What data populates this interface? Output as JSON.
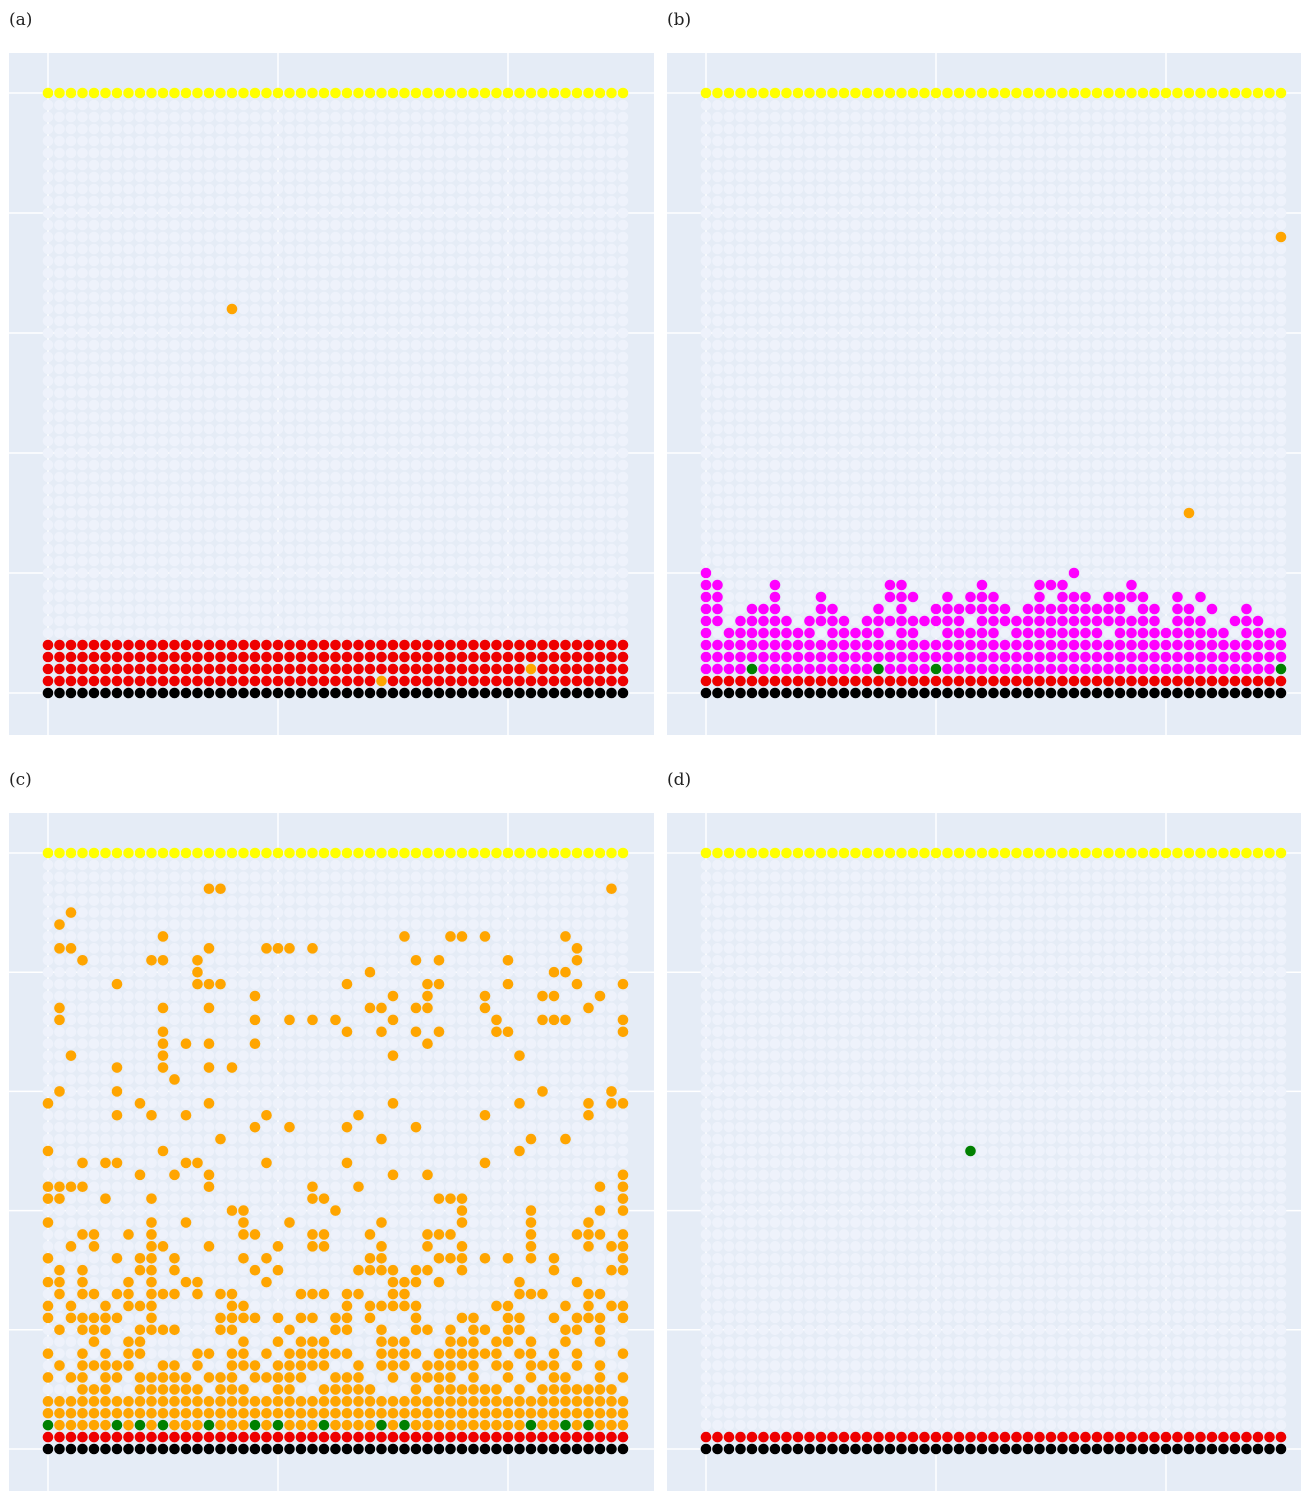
{
  "colors": {
    "background": "#e5ecf6",
    "gridline": "#ffffff",
    "empty": "#eef2fb",
    "yellow": "#ffff00",
    "red": "#ee0000",
    "black": "#000000",
    "orange": "#ffa500",
    "magenta": "#ff00ff",
    "green": "#008000"
  },
  "chart_data": [
    {
      "type": "scatter",
      "label": "(a)",
      "grid": true,
      "cols": 51,
      "rows": 51,
      "legend": "none",
      "cells": [
        {
          "color": "black",
          "row": 0,
          "x_from": 0,
          "x_to": 50
        },
        {
          "color": "red",
          "rows": [
            1,
            4
          ],
          "x_from": 0,
          "x_to": 50
        },
        {
          "color": "yellow",
          "row": 50,
          "x_from": 0,
          "x_to": 50
        }
      ],
      "points": [
        {
          "color": "orange",
          "x": 16,
          "y": 32
        },
        {
          "color": "orange",
          "x": 29,
          "y": 1
        },
        {
          "color": "orange",
          "x": 42,
          "y": 2
        }
      ]
    },
    {
      "type": "scatter",
      "label": "(b)",
      "grid": true,
      "cols": 51,
      "rows": 51,
      "legend": "none",
      "cells": [
        {
          "color": "black",
          "row": 0,
          "x_from": 0,
          "x_to": 50
        },
        {
          "color": "red",
          "row": 1,
          "x_from": 0,
          "x_to": 50
        },
        {
          "color": "magenta",
          "rows": [
            2,
            3
          ],
          "x_from": 0,
          "x_to": 50
        },
        {
          "color": "yellow",
          "row": 50,
          "x_from": 0,
          "x_to": 50
        }
      ],
      "column_heights": [
        9,
        8,
        4,
        5,
        6,
        7,
        8,
        5,
        4,
        6,
        7,
        6,
        5,
        4,
        5,
        6,
        8,
        8,
        7,
        5,
        6,
        7,
        6,
        7,
        8,
        7,
        6,
        5,
        6,
        8,
        9,
        8,
        9,
        7,
        6,
        7,
        7,
        8,
        7,
        6,
        5,
        7,
        6,
        7,
        6,
        7,
        5,
        6,
        5,
        4,
        4
      ],
      "points": [
        {
          "color": "green",
          "x": 4,
          "y": 2
        },
        {
          "color": "green",
          "x": 15,
          "y": 2
        },
        {
          "color": "green",
          "x": 20,
          "y": 2
        },
        {
          "color": "green",
          "x": 50,
          "y": 2
        },
        {
          "color": "orange",
          "x": 50,
          "y": 38
        },
        {
          "color": "orange",
          "x": 42,
          "y": 15
        }
      ]
    },
    {
      "type": "scatter",
      "label": "(c)",
      "grid": true,
      "cols": 51,
      "rows": 51,
      "legend": "none",
      "cells": [
        {
          "color": "black",
          "row": 0,
          "x_from": 0,
          "x_to": 50
        },
        {
          "color": "red",
          "row": 1,
          "x_from": 0,
          "x_to": 50
        },
        {
          "color": "orange",
          "row": 2,
          "x_from": 0,
          "x_to": 50
        },
        {
          "color": "yellow",
          "row": 50,
          "x_from": 0,
          "x_to": 50
        }
      ],
      "points": [
        {
          "color": "green",
          "x": 0,
          "y": 2
        },
        {
          "color": "green",
          "x": 6,
          "y": 2
        },
        {
          "color": "green",
          "x": 8,
          "y": 2
        },
        {
          "color": "green",
          "x": 10,
          "y": 2
        },
        {
          "color": "green",
          "x": 14,
          "y": 2
        },
        {
          "color": "green",
          "x": 18,
          "y": 2
        },
        {
          "color": "green",
          "x": 20,
          "y": 2
        },
        {
          "color": "green",
          "x": 24,
          "y": 2
        },
        {
          "color": "green",
          "x": 29,
          "y": 2
        },
        {
          "color": "green",
          "x": 31,
          "y": 2
        },
        {
          "color": "green",
          "x": 42,
          "y": 2
        },
        {
          "color": "green",
          "x": 45,
          "y": 2
        },
        {
          "color": "green",
          "x": 47,
          "y": 2
        },
        {
          "color": "orange",
          "x": 14,
          "y": 47
        },
        {
          "color": "orange",
          "x": 15,
          "y": 47
        },
        {
          "color": "orange",
          "x": 49,
          "y": 47
        },
        {
          "color": "orange",
          "x": 2,
          "y": 45
        },
        {
          "color": "orange",
          "x": 1,
          "y": 44
        },
        {
          "color": "orange",
          "x": 10,
          "y": 43
        },
        {
          "color": "orange",
          "x": 31,
          "y": 43
        },
        {
          "color": "orange",
          "x": 45,
          "y": 43
        },
        {
          "color": "orange",
          "x": 1,
          "y": 42
        },
        {
          "color": "orange",
          "x": 46,
          "y": 41
        },
        {
          "color": "orange",
          "x": 50,
          "y": 39
        },
        {
          "color": "orange",
          "x": 18,
          "y": 38
        },
        {
          "color": "orange",
          "x": 33,
          "y": 38
        },
        {
          "color": "orange",
          "x": 43,
          "y": 38
        },
        {
          "color": "orange",
          "x": 44,
          "y": 38
        },
        {
          "color": "orange",
          "x": 1,
          "y": 37
        },
        {
          "color": "orange",
          "x": 10,
          "y": 37
        },
        {
          "color": "orange",
          "x": 29,
          "y": 37
        },
        {
          "color": "orange",
          "x": 32,
          "y": 37
        },
        {
          "color": "orange",
          "x": 21,
          "y": 36
        },
        {
          "color": "orange",
          "x": 23,
          "y": 36
        },
        {
          "color": "orange",
          "x": 30,
          "y": 36
        },
        {
          "color": "orange",
          "x": 39,
          "y": 36
        },
        {
          "color": "orange",
          "x": 43,
          "y": 36
        }
      ],
      "column_heights": [
        21,
        22,
        17,
        17,
        19,
        19,
        18,
        15,
        19,
        21,
        18,
        19,
        15,
        14,
        18,
        17,
        15,
        19,
        17,
        16,
        16,
        14,
        16,
        18,
        17,
        13,
        13,
        17,
        17,
        18,
        14,
        15,
        15,
        18,
        17,
        18,
        19,
        15,
        17,
        15,
        18,
        16,
        19,
        18,
        19,
        16,
        19,
        21,
        21,
        21,
        20
      ],
      "scatter_above": 14
    },
    {
      "type": "scatter",
      "label": "(d)",
      "grid": true,
      "cols": 51,
      "rows": 51,
      "legend": "none",
      "cells": [
        {
          "color": "black",
          "row": 0,
          "x_from": 0,
          "x_to": 50
        },
        {
          "color": "red",
          "row": 1,
          "x_from": 0,
          "x_to": 50
        },
        {
          "color": "yellow",
          "row": 50,
          "x_from": 0,
          "x_to": 50
        }
      ],
      "points": [
        {
          "color": "green",
          "x": 23,
          "y": 25
        }
      ]
    }
  ]
}
